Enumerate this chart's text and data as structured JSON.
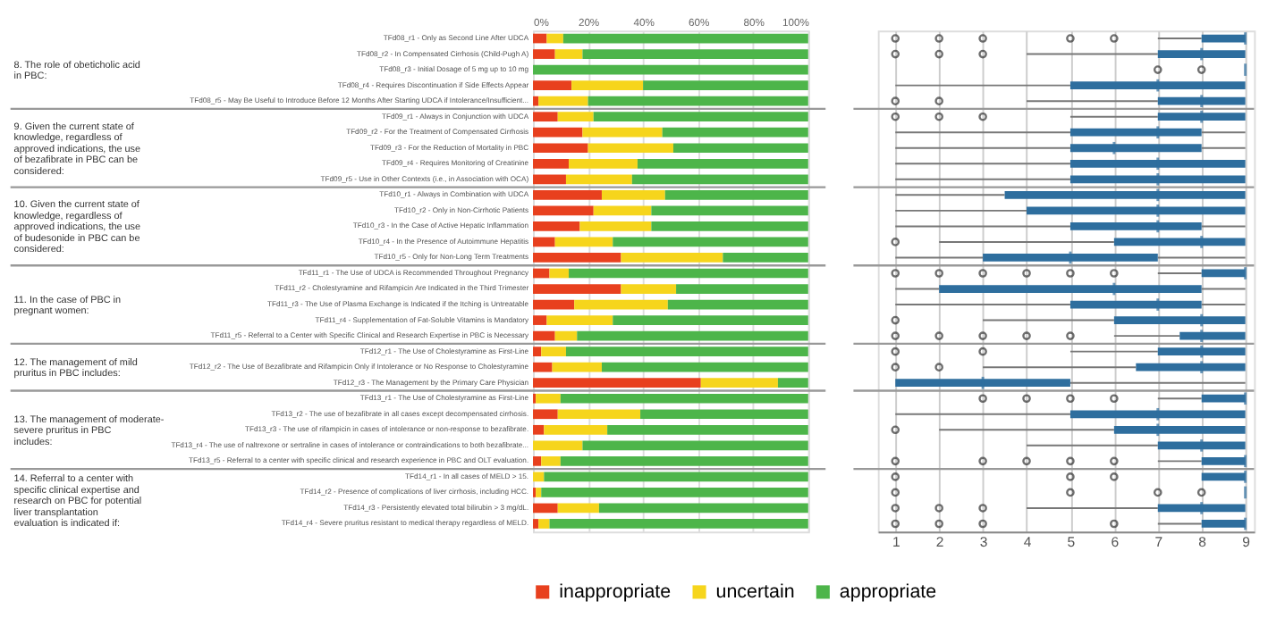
{
  "chart_data": [
    {
      "type": "bar",
      "orientation": "horizontal",
      "stacked": true,
      "grid": "x",
      "legend": "bottom",
      "categories": [
        "TFd08_r1 - Only as Second Line After UDCA",
        "TFd08_r2 - In Compensated Cirrhosis (Child-Pugh A)",
        "TFd08_r3 - Initial Dosage of 5 mg up to 10 mg",
        "TFd08_r4 - Requires Discontinuation if Side Effects Appear",
        "TFd08_r5 - May Be Useful to Introduce Before 12 Months After Starting UDCA if Intolerance/Insufficient...",
        "TFd09_r1 - Always in Conjunction with UDCA",
        "TFd09_r2 - For the Treatment of Compensated Cirrhosis",
        "TFd09_r3 - For the Reduction of Mortality in PBC",
        "TFd09_r4 - Requires Monitoring of Creatinine",
        "TFd09_r5 - Use in Other Contexts (i.e., in Association with OCA)",
        "TFd10_r1 - Always in Combination with UDCA",
        "TFd10_r2 - Only in Non-Cirrhotic Patients",
        "TFd10_r3 - In the Case of Active Hepatic Inflammation",
        "TFd10_r4 - In the Presence of Autoimmune Hepatitis",
        "TFd10_r5 - Only for Non-Long Term Treatments",
        "TFd11_r1 - The Use of UDCA is Recommended Throughout Pregnancy",
        "TFd11_r2 - Cholestyramine and Rifampicin Are Indicated in the Third Trimester",
        "TFd11_r3 - The Use of Plasma Exchange is Indicated if the Itching is Untreatable",
        "TFd11_r4 - Supplementation of Fat-Soluble Vitamins is Mandatory",
        "TFd11_r5 - Referral to a Center with Specific Clinical and Research Expertise in PBC is Necessary",
        "TFd12_r1 - The Use of Cholestyramine as First-Line",
        "TFd12_r2 - The Use of Bezafibrate and Rifampicin Only if Intolerance or No Response to Cholestyramine",
        "TFd12_r3 - The Management by the Primary Care Physician",
        "TFd13_r1 - The Use of Cholestyramine as First-Line",
        "TFd13_r2 - The use of bezafibrate in all cases except decompensated cirrhosis.",
        "TFd13_r3 - The use of rifampicin in cases of intolerance or non-response to bezafibrate.",
        "TFd13_r4 - The use of naltrexone or sertraline in cases of intolerance or contraindications to both bezafibrate...",
        "TFd13_r5 - Referral to a center with specific clinical and research experience in PBC and OLT evaluation.",
        "TFd14_r1 - In all cases of MELD > 15.",
        "TFd14_r2 - Presence of complications of liver cirrhosis, including HCC.",
        "TFd14_r3 - Persistently elevated total bilirubin > 3 mg/dL.",
        "TFd14_r4 - Severe pruritus resistant to medical therapy regardless of MELD."
      ],
      "series": [
        {
          "name": "inappropriate",
          "color": "#e8401e",
          "values": [
            5,
            8,
            0,
            14,
            2,
            9,
            18,
            20,
            13,
            12,
            25,
            22,
            17,
            8,
            32,
            6,
            32,
            15,
            5,
            8,
            3,
            7,
            61,
            1,
            9,
            4,
            0,
            3,
            0,
            1,
            9,
            2
          ]
        },
        {
          "name": "uncertain",
          "color": "#f6d51c",
          "values": [
            6,
            10,
            0,
            26,
            18,
            13,
            29,
            31,
            25,
            24,
            23,
            21,
            26,
            21,
            37,
            7,
            20,
            34,
            24,
            8,
            9,
            18,
            28,
            9,
            30,
            23,
            18,
            7,
            4,
            2,
            15,
            4
          ]
        },
        {
          "name": "appropriate",
          "color": "#4db54a",
          "values": [
            89,
            82,
            100,
            60,
            80,
            78,
            53,
            49,
            62,
            64,
            52,
            57,
            57,
            71,
            31,
            87,
            48,
            51,
            71,
            84,
            88,
            75,
            11,
            90,
            61,
            73,
            82,
            90,
            96,
            97,
            76,
            94
          ]
        }
      ],
      "xlim": [
        0,
        100
      ],
      "xticks": [
        {
          "value": 0,
          "label": "0%"
        },
        {
          "value": 20,
          "label": "20%"
        },
        {
          "value": 40,
          "label": "40%"
        },
        {
          "value": 60,
          "label": "60%"
        },
        {
          "value": 80,
          "label": "80%"
        },
        {
          "value": 100,
          "label": "100%"
        }
      ],
      "annotations": [
        "8. The role of obeticholic acid in PBC:",
        "9. Given the current state of knowledge, regardless of approved indications, the use of bezafibrate in PBC can be considered:",
        "10. Given the current state of knowledge, regardless of approved indications, the use of budesonide in PBC can be considered:",
        "11. In the case of PBC in pregnant women:",
        "12. The management of mild pruritus in PBC includes:",
        "13. The management of moderate-severe pruritus in PBC includes:",
        "14. Referral to a center with specific clinical expertise and research on PBC for potential liver transplantation evaluation is indicated if:"
      ]
    },
    {
      "type": "box",
      "orientation": "horizontal",
      "grid": "x",
      "tick_labels": "x",
      "color": "#2e6e9e",
      "boxes": [
        {
          "low": 7,
          "q1": 8,
          "median": 9,
          "q3": 9,
          "high": 9,
          "outliers": [
            1,
            2,
            3,
            5,
            6
          ]
        },
        {
          "low": 4,
          "q1": 7,
          "median": 8,
          "q3": 9,
          "high": 9,
          "outliers": [
            1,
            2,
            3
          ]
        },
        {
          "low": 9,
          "q1": 9,
          "median": 9,
          "q3": 9,
          "high": 9,
          "outliers": [
            7,
            8
          ]
        },
        {
          "low": 1,
          "q1": 5,
          "median": 7,
          "q3": 9,
          "high": 9
        },
        {
          "low": 4,
          "q1": 7,
          "median": 8,
          "q3": 9,
          "high": 9,
          "outliers": [
            1,
            2
          ]
        },
        {
          "low": 5,
          "q1": 7,
          "median": 8,
          "q3": 9,
          "high": 9,
          "outliers": [
            1,
            2,
            3
          ]
        },
        {
          "low": 1,
          "q1": 5,
          "median": 7,
          "q3": 8,
          "high": 9
        },
        {
          "low": 1,
          "q1": 5,
          "median": 6,
          "q3": 8,
          "high": 9
        },
        {
          "low": 1,
          "q1": 5,
          "median": 7,
          "q3": 9,
          "high": 9
        },
        {
          "low": 1,
          "q1": 5,
          "median": 7,
          "q3": 9,
          "high": 9
        },
        {
          "low": 1,
          "q1": 3.5,
          "median": 7,
          "q3": 9,
          "high": 9
        },
        {
          "low": 1,
          "q1": 4,
          "median": 7,
          "q3": 9,
          "high": 9
        },
        {
          "low": 1,
          "q1": 5,
          "median": 7,
          "q3": 8,
          "high": 9
        },
        {
          "low": 2,
          "q1": 6,
          "median": 8,
          "q3": 9,
          "high": 9,
          "outliers": [
            1
          ]
        },
        {
          "low": 1,
          "q1": 3,
          "median": 5,
          "q3": 7,
          "high": 9
        },
        {
          "low": 7,
          "q1": 8,
          "median": 9,
          "q3": 9,
          "high": 9,
          "outliers": [
            1,
            2,
            3,
            4,
            5,
            6
          ]
        },
        {
          "low": 1,
          "q1": 2,
          "median": 6,
          "q3": 8,
          "high": 9
        },
        {
          "low": 1,
          "q1": 5,
          "median": 7,
          "q3": 8,
          "high": 9
        },
        {
          "low": 3,
          "q1": 6,
          "median": 8,
          "q3": 9,
          "high": 9,
          "outliers": [
            1
          ]
        },
        {
          "low": 6,
          "q1": 7.5,
          "median": 8,
          "q3": 9,
          "high": 9,
          "outliers": [
            1,
            2,
            3,
            4,
            5
          ]
        },
        {
          "low": 5,
          "q1": 7,
          "median": 8,
          "q3": 9,
          "high": 9,
          "outliers": [
            1,
            3
          ]
        },
        {
          "low": 3,
          "q1": 6.5,
          "median": 8,
          "q3": 9,
          "high": 9,
          "outliers": [
            1,
            2
          ]
        },
        {
          "low": 1,
          "q1": 1,
          "median": 3,
          "q3": 5,
          "high": 9
        },
        {
          "low": 7,
          "q1": 8,
          "median": 9,
          "q3": 9,
          "high": 9,
          "outliers": [
            3,
            4,
            5,
            6
          ]
        },
        {
          "low": 1,
          "q1": 5,
          "median": 7,
          "q3": 9,
          "high": 9
        },
        {
          "low": 2,
          "q1": 6,
          "median": 7,
          "q3": 9,
          "high": 9,
          "outliers": [
            1
          ]
        },
        {
          "low": 4,
          "q1": 7,
          "median": 8,
          "q3": 9,
          "high": 9
        },
        {
          "low": 7,
          "q1": 8,
          "median": 9,
          "q3": 9,
          "high": 9,
          "outliers": [
            1,
            3,
            4,
            5,
            6
          ]
        },
        {
          "low": 8,
          "q1": 8,
          "median": 9,
          "q3": 9,
          "high": 9,
          "outliers": [
            1,
            5,
            6
          ]
        },
        {
          "low": 9,
          "q1": 9,
          "median": 9,
          "q3": 9,
          "high": 9,
          "outliers": [
            1,
            5,
            7,
            8
          ]
        },
        {
          "low": 4,
          "q1": 7,
          "median": 8,
          "q3": 9,
          "high": 9,
          "outliers": [
            1,
            2,
            3
          ]
        },
        {
          "low": 7,
          "q1": 8,
          "median": 9,
          "q3": 9,
          "high": 9,
          "outliers": [
            1,
            2,
            3,
            6
          ]
        }
      ],
      "xlim": [
        0.6,
        9.2
      ],
      "xticks": [
        1,
        2,
        3,
        4,
        5,
        6,
        7,
        8,
        9
      ]
    }
  ]
}
